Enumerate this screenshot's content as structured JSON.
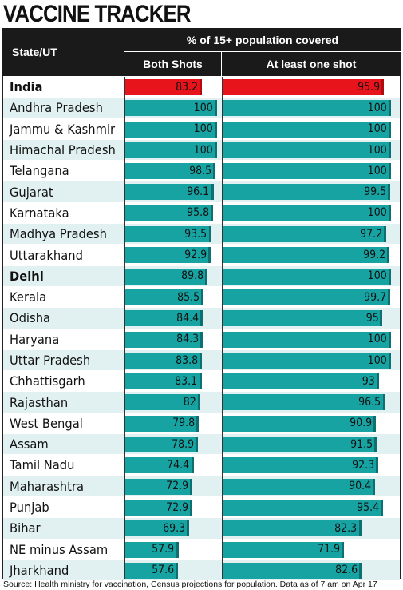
{
  "title": "VACCINE TRACKER",
  "headers": {
    "state": "State/UT",
    "group": "% of 15+ population covered",
    "both": "Both Shots",
    "one": "At least one shot"
  },
  "source": "Source: Health ministry for vaccination, Census projections for population. Data as of 7 am on Apr 17",
  "colors": {
    "highlight": "#e8141b",
    "bar": "#18a3a3",
    "row_alt": "#e1f1f1"
  },
  "chart_data": {
    "type": "bar",
    "categories": [
      "India",
      "Andhra Pradesh",
      "Jammu & Kashmir",
      "Himachal Pradesh",
      "Telangana",
      "Gujarat",
      "Karnataka",
      "Madhya Pradesh",
      "Uttarakhand",
      "Delhi",
      "Kerala",
      "Odisha",
      "Haryana",
      "Uttar Pradesh",
      "Chhattisgarh",
      "Rajasthan",
      "West Bengal",
      "Assam",
      "Tamil Nadu",
      "Maharashtra",
      "Punjab",
      "Bihar",
      "NE minus Assam",
      "Jharkhand"
    ],
    "bold_categories": [
      "India",
      "Delhi"
    ],
    "highlight_category": "India",
    "series": [
      {
        "name": "Both Shots",
        "values": [
          83.2,
          100,
          100,
          100,
          98.5,
          96.1,
          95.8,
          93.5,
          92.9,
          89.8,
          85.5,
          84.4,
          84.3,
          83.8,
          83.1,
          82,
          79.8,
          78.9,
          74.4,
          72.9,
          72.9,
          69.3,
          57.9,
          57.6
        ]
      },
      {
        "name": "At least one shot",
        "values": [
          95.9,
          100,
          100,
          100,
          100,
          99.5,
          100,
          97.2,
          99.2,
          100,
          99.7,
          95,
          100,
          100,
          93,
          96.5,
          90.9,
          91.5,
          92.3,
          90.4,
          95.4,
          82.3,
          71.9,
          82.6
        ]
      }
    ],
    "labels": {
      "Both Shots": [
        "83.2",
        "100",
        "100",
        "100",
        "98.5",
        "96.1",
        "95.8",
        "93.5",
        "92.9",
        "89.8",
        "85.5",
        "84.4",
        "84.3",
        "83.8",
        "83.1",
        "82",
        "79.8",
        "78.9",
        "74.4",
        "72.9",
        "72.9",
        "69.3",
        "57.9",
        "57.6"
      ],
      "At least one shot": [
        "95.9",
        "100",
        "100",
        "100",
        "100",
        "99.5",
        "100",
        "97.2",
        "99.2",
        "100",
        "99.7",
        "95",
        "100",
        "100",
        "93",
        "96.5",
        "90.9",
        "91.5",
        "92.3",
        "90.4",
        "95.4",
        "82.3",
        "71.9",
        "82.6"
      ]
    },
    "xlim": [
      0,
      100
    ],
    "legend": "none",
    "grid": false
  }
}
